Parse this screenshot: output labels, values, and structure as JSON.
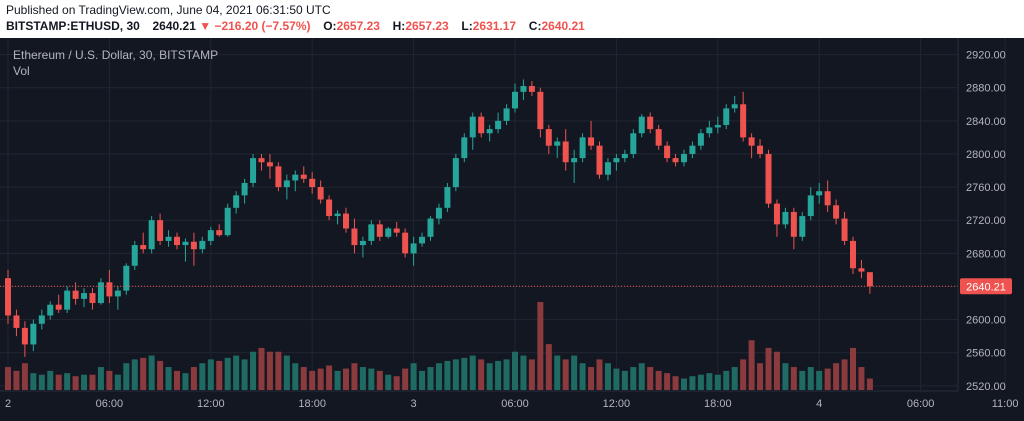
{
  "header": {
    "published": "Published on TradingView.com, June 04, 2021 06:31:50 UTC",
    "symbol": "BITSTAMP:ETHUSD, 30",
    "last": "2640.21",
    "change_arrow": "▼",
    "change": "−216.20 (−7.57%)",
    "o_label": "O:",
    "o_value": "2657.23",
    "h_label": "H:",
    "h_value": "2657.23",
    "l_label": "L:",
    "l_value": "2631.17",
    "c_label": "C:",
    "c_value": "2640.21"
  },
  "legend": {
    "title": "Ethereum / U.S. Dollar, 30, BITSTAMP",
    "volume_label": "Vol"
  },
  "colors": {
    "background": "#131722",
    "up": "#26a69a",
    "down": "#ef5350",
    "up_volume": "#1f6b63",
    "down_volume": "#8b3a3e",
    "grid": "#222631",
    "axis_text": "#b2b5be",
    "price_label_bg": "#ef5350"
  },
  "chart_data": {
    "type": "candlestick",
    "symbol": "BITSTAMP:ETHUSD",
    "interval": "30",
    "y_ticks": [
      2520,
      2560,
      2600,
      2640,
      2680,
      2720,
      2760,
      2800,
      2840,
      2880,
      2920
    ],
    "y_tick_labels": [
      "2520.00",
      "2560.00",
      "2600.00",
      "2640.00",
      "2680.00",
      "2720.00",
      "2760.00",
      "2800.00",
      "2840.00",
      "2880.00",
      "2920.00"
    ],
    "ylim": [
      2515,
      2940
    ],
    "x_labels": [
      "2",
      "06:00",
      "12:00",
      "18:00",
      "3",
      "06:00",
      "12:00",
      "18:00",
      "4",
      "06:00",
      "11:00"
    ],
    "x_label_bar_index": [
      0,
      12,
      24,
      36,
      48,
      60,
      72,
      84,
      96,
      108,
      118
    ],
    "current_price": 2640.21,
    "current_price_label": "2640.21",
    "grid": true,
    "candles": [
      [
        2650,
        2660,
        2595,
        2605,
        30
      ],
      [
        2605,
        2612,
        2580,
        2590,
        25
      ],
      [
        2590,
        2598,
        2555,
        2570,
        35
      ],
      [
        2570,
        2600,
        2562,
        2595,
        22
      ],
      [
        2595,
        2612,
        2588,
        2605,
        20
      ],
      [
        2605,
        2622,
        2600,
        2618,
        25
      ],
      [
        2618,
        2630,
        2608,
        2612,
        20
      ],
      [
        2612,
        2640,
        2608,
        2635,
        22
      ],
      [
        2635,
        2645,
        2618,
        2625,
        18
      ],
      [
        2625,
        2638,
        2615,
        2632,
        20
      ],
      [
        2632,
        2638,
        2612,
        2620,
        20
      ],
      [
        2620,
        2650,
        2618,
        2645,
        30
      ],
      [
        2645,
        2660,
        2620,
        2628,
        25
      ],
      [
        2628,
        2640,
        2612,
        2635,
        20
      ],
      [
        2635,
        2668,
        2630,
        2665,
        35
      ],
      [
        2665,
        2695,
        2660,
        2690,
        40
      ],
      [
        2690,
        2705,
        2680,
        2685,
        42
      ],
      [
        2685,
        2725,
        2680,
        2720,
        45
      ],
      [
        2720,
        2728,
        2690,
        2695,
        38
      ],
      [
        2695,
        2708,
        2688,
        2700,
        30
      ],
      [
        2700,
        2705,
        2685,
        2690,
        25
      ],
      [
        2690,
        2698,
        2670,
        2694,
        22
      ],
      [
        2694,
        2705,
        2665,
        2685,
        30
      ],
      [
        2685,
        2700,
        2680,
        2695,
        35
      ],
      [
        2695,
        2712,
        2690,
        2708,
        40
      ],
      [
        2708,
        2715,
        2700,
        2702,
        38
      ],
      [
        2702,
        2740,
        2700,
        2735,
        42
      ],
      [
        2735,
        2755,
        2728,
        2750,
        45
      ],
      [
        2750,
        2770,
        2740,
        2765,
        40
      ],
      [
        2765,
        2800,
        2760,
        2795,
        50
      ],
      [
        2795,
        2800,
        2780,
        2790,
        55
      ],
      [
        2790,
        2800,
        2770,
        2785,
        50
      ],
      [
        2785,
        2790,
        2755,
        2760,
        50
      ],
      [
        2760,
        2775,
        2745,
        2768,
        45
      ],
      [
        2768,
        2780,
        2755,
        2775,
        35
      ],
      [
        2775,
        2785,
        2765,
        2770,
        30
      ],
      [
        2770,
        2778,
        2752,
        2760,
        25
      ],
      [
        2760,
        2768,
        2740,
        2745,
        28
      ],
      [
        2745,
        2750,
        2720,
        2725,
        32
      ],
      [
        2725,
        2732,
        2715,
        2728,
        25
      ],
      [
        2728,
        2735,
        2705,
        2710,
        28
      ],
      [
        2710,
        2722,
        2680,
        2690,
        35
      ],
      [
        2690,
        2700,
        2675,
        2695,
        30
      ],
      [
        2695,
        2720,
        2690,
        2715,
        28
      ],
      [
        2715,
        2720,
        2695,
        2700,
        25
      ],
      [
        2700,
        2712,
        2698,
        2710,
        20
      ],
      [
        2710,
        2718,
        2700,
        2705,
        18
      ],
      [
        2705,
        2710,
        2675,
        2680,
        28
      ],
      [
        2680,
        2700,
        2665,
        2692,
        35
      ],
      [
        2692,
        2705,
        2688,
        2700,
        25
      ],
      [
        2700,
        2725,
        2695,
        2722,
        30
      ],
      [
        2722,
        2740,
        2715,
        2735,
        35
      ],
      [
        2735,
        2765,
        2730,
        2760,
        38
      ],
      [
        2760,
        2800,
        2755,
        2795,
        40
      ],
      [
        2795,
        2825,
        2790,
        2820,
        42
      ],
      [
        2820,
        2850,
        2805,
        2845,
        45
      ],
      [
        2845,
        2850,
        2820,
        2825,
        40
      ],
      [
        2825,
        2835,
        2815,
        2830,
        35
      ],
      [
        2830,
        2850,
        2825,
        2840,
        38
      ],
      [
        2840,
        2860,
        2835,
        2855,
        40
      ],
      [
        2855,
        2885,
        2850,
        2875,
        50
      ],
      [
        2875,
        2890,
        2865,
        2882,
        45
      ],
      [
        2882,
        2888,
        2870,
        2875,
        40
      ],
      [
        2875,
        2880,
        2820,
        2830,
        115
      ],
      [
        2830,
        2835,
        2800,
        2810,
        60
      ],
      [
        2810,
        2820,
        2795,
        2815,
        45
      ],
      [
        2815,
        2830,
        2780,
        2790,
        40
      ],
      [
        2790,
        2805,
        2765,
        2795,
        45
      ],
      [
        2795,
        2825,
        2790,
        2820,
        35
      ],
      [
        2820,
        2840,
        2805,
        2810,
        30
      ],
      [
        2810,
        2815,
        2770,
        2775,
        40
      ],
      [
        2775,
        2795,
        2768,
        2790,
        35
      ],
      [
        2790,
        2800,
        2780,
        2795,
        28
      ],
      [
        2795,
        2805,
        2790,
        2800,
        25
      ],
      [
        2800,
        2830,
        2795,
        2825,
        30
      ],
      [
        2825,
        2848,
        2820,
        2845,
        35
      ],
      [
        2845,
        2850,
        2825,
        2830,
        30
      ],
      [
        2830,
        2835,
        2805,
        2810,
        25
      ],
      [
        2810,
        2815,
        2790,
        2795,
        22
      ],
      [
        2795,
        2800,
        2785,
        2790,
        18
      ],
      [
        2790,
        2805,
        2785,
        2800,
        15
      ],
      [
        2800,
        2815,
        2795,
        2810,
        18
      ],
      [
        2810,
        2830,
        2805,
        2825,
        20
      ],
      [
        2825,
        2840,
        2820,
        2832,
        22
      ],
      [
        2832,
        2845,
        2825,
        2835,
        20
      ],
      [
        2835,
        2860,
        2830,
        2855,
        25
      ],
      [
        2855,
        2870,
        2850,
        2860,
        30
      ],
      [
        2860,
        2875,
        2815,
        2820,
        40
      ],
      [
        2820,
        2825,
        2795,
        2810,
        65
      ],
      [
        2810,
        2818,
        2795,
        2800,
        35
      ],
      [
        2800,
        2805,
        2735,
        2740,
        55
      ],
      [
        2740,
        2745,
        2700,
        2715,
        50
      ],
      [
        2715,
        2735,
        2710,
        2730,
        35
      ],
      [
        2730,
        2735,
        2685,
        2700,
        30
      ],
      [
        2700,
        2730,
        2695,
        2725,
        25
      ],
      [
        2725,
        2760,
        2720,
        2750,
        30
      ],
      [
        2750,
        2765,
        2740,
        2755,
        25
      ],
      [
        2755,
        2768,
        2730,
        2738,
        28
      ],
      [
        2738,
        2745,
        2715,
        2722,
        35
      ],
      [
        2722,
        2730,
        2690,
        2695,
        40
      ],
      [
        2695,
        2700,
        2655,
        2662,
        55
      ],
      [
        2662,
        2672,
        2650,
        2658,
        30
      ],
      [
        2657.23,
        2657.23,
        2631.17,
        2640.21,
        15
      ]
    ]
  }
}
